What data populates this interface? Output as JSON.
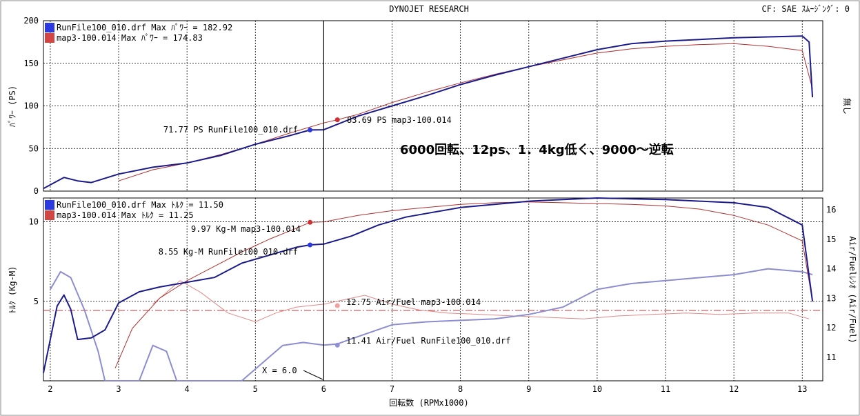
{
  "header": {
    "title": "DYNOJET  RESEARCH",
    "cf": "CF: SAE  ｽﾑｰｼﾞﾝｸﾞ: 0"
  },
  "colors": {
    "run1": "#1a1a8c",
    "run2": "#b03030",
    "run1_af": "#8c8cd0",
    "run2_af": "#e08888",
    "grid": "#000000"
  },
  "chart_data": [
    {
      "type": "line",
      "ylabel": "ﾊﾟﾜｰ (PS)",
      "xlim": [
        1.9,
        13.3
      ],
      "ylim": [
        0,
        200
      ],
      "yticks": [
        "0",
        "50",
        "100",
        "150",
        "200"
      ],
      "right_label": "無し",
      "legend": [
        "RunFile100_010.drf Max ﾊﾟﾜｰ = 182.92",
        "map3-100.014 Max ﾊﾟﾜｰ = 174.83"
      ],
      "annotations": [
        "71.77 PS RunFile100_010.drf",
        "83.69 PS map3-100.014"
      ],
      "note": "6000回転、12ps、1．4kg低く、9000～逆転",
      "series": [
        {
          "name": "RunFile100_010.drf",
          "x": [
            1.9,
            2.2,
            2.4,
            2.6,
            3.0,
            3.5,
            4.0,
            4.5,
            5.0,
            5.5,
            5.8,
            6.0,
            6.5,
            7.0,
            7.5,
            8.0,
            8.5,
            9.0,
            9.5,
            10.0,
            10.5,
            11.0,
            11.5,
            12.0,
            12.5,
            13.0,
            13.1,
            13.15
          ],
          "y": [
            3,
            16,
            12,
            10,
            20,
            28,
            33,
            42,
            55,
            65,
            71.77,
            72,
            88,
            100,
            112,
            125,
            136,
            146,
            156,
            166,
            173,
            176,
            178,
            180,
            181,
            182,
            175,
            110
          ]
        },
        {
          "name": "map3-100.014",
          "x": [
            3.0,
            3.5,
            4.0,
            4.5,
            5.0,
            5.5,
            6.0,
            6.2,
            6.5,
            7.0,
            7.5,
            8.0,
            8.5,
            9.0,
            9.5,
            10.0,
            10.5,
            11.0,
            11.5,
            12.0,
            12.5,
            13.0,
            13.15
          ],
          "y": [
            12,
            25,
            33,
            43,
            55,
            68,
            80,
            83.69,
            90,
            104,
            116,
            127,
            137,
            146,
            154,
            162,
            167,
            170,
            172,
            173,
            170,
            165,
            120
          ]
        }
      ]
    },
    {
      "type": "line",
      "ylabel": "ﾄﾙｸ (Kg-M)",
      "y2label": "Air/Fuelﾚｼｵ (Air/Fuel)",
      "xlabel": "回転数 (RPMx1000)",
      "xlim": [
        1.9,
        13.3
      ],
      "xticks": [
        "2",
        "3",
        "4",
        "5",
        "6",
        "7",
        "8",
        "9",
        "10",
        "11",
        "12",
        "13"
      ],
      "ylim": [
        0,
        11.5
      ],
      "yticks": [
        "5",
        "10"
      ],
      "y2lim": [
        10.2,
        16.4
      ],
      "y2ticks": [
        "11",
        "12",
        "13",
        "14",
        "15",
        "16"
      ],
      "legend": [
        "RunFile100_010.drf Max ﾄﾙｸ = 11.50",
        "map3-100.014 Max ﾄﾙｸ = 11.25"
      ],
      "annotations": [
        "9.97 Kg-M map3-100.014",
        "8.55 Kg-M RunFile100_010.drf",
        "12.75 Air/Fuel map3-100.014",
        "11.41 Air/Fuel RunFile100_010.drf",
        "X = 6.0"
      ],
      "series": [
        {
          "name": "RunFile100_010.drf ﾄﾙｸ",
          "x": [
            1.9,
            2.1,
            2.2,
            2.3,
            2.4,
            2.6,
            2.8,
            3.0,
            3.3,
            3.6,
            4.0,
            4.4,
            4.8,
            5.2,
            5.6,
            5.8,
            6.0,
            6.4,
            6.8,
            7.2,
            7.6,
            8.0,
            8.5,
            9.0,
            9.5,
            10.0,
            10.5,
            11.0,
            11.5,
            12.0,
            12.5,
            13.0,
            13.15
          ],
          "y": [
            0.5,
            4.7,
            5.4,
            4.5,
            2.6,
            2.7,
            3.2,
            4.9,
            5.6,
            5.9,
            6.2,
            6.5,
            7.4,
            7.9,
            8.4,
            8.55,
            8.6,
            9.1,
            9.8,
            10.3,
            10.6,
            10.9,
            11.1,
            11.3,
            11.4,
            11.5,
            11.45,
            11.4,
            11.3,
            11.2,
            10.9,
            9.8,
            5.0
          ]
        },
        {
          "name": "map3-100.014 ﾄﾙｸ",
          "x": [
            2.95,
            3.2,
            3.6,
            4.0,
            4.4,
            4.8,
            5.2,
            5.6,
            5.8,
            6.0,
            6.5,
            7.0,
            7.5,
            8.0,
            8.5,
            9.0,
            9.5,
            10.0,
            10.5,
            11.0,
            11.5,
            12.0,
            12.5,
            13.0,
            13.15
          ],
          "y": [
            0.8,
            3.3,
            5.2,
            6.3,
            7.2,
            8.1,
            8.9,
            9.6,
            9.97,
            10.0,
            10.4,
            10.7,
            10.9,
            11.1,
            11.2,
            11.25,
            11.2,
            11.15,
            11.1,
            11.0,
            10.8,
            10.4,
            9.8,
            8.8,
            5.0
          ]
        },
        {
          "name": "RunFile100_010.drf Air/Fuel",
          "x": [
            2.0,
            2.15,
            2.3,
            2.5,
            2.7,
            2.8,
            3.3,
            3.5,
            3.7,
            3.85,
            4.8,
            5.1,
            5.4,
            5.7,
            6.0,
            6.2,
            6.5,
            7.0,
            7.5,
            8.0,
            8.5,
            9.0,
            9.5,
            10.0,
            10.5,
            11.0,
            11.5,
            12.0,
            12.5,
            13.0,
            13.15
          ],
          "y": [
            13.3,
            13.9,
            13.7,
            12.6,
            11.2,
            10.2,
            10.2,
            11.4,
            11.2,
            10.2,
            10.2,
            10.8,
            11.4,
            11.5,
            11.41,
            11.45,
            11.7,
            12.1,
            12.2,
            12.25,
            12.3,
            12.45,
            12.7,
            13.3,
            13.5,
            13.6,
            13.7,
            13.8,
            14.0,
            13.9,
            13.8
          ]
        },
        {
          "name": "map3-100.014 Air/Fuel",
          "x": [
            3.5,
            3.9,
            4.2,
            4.6,
            5.0,
            5.3,
            5.6,
            5.8,
            6.0,
            6.2,
            6.6,
            7.0,
            7.4,
            7.8,
            8.3,
            8.8,
            9.3,
            9.8,
            10.3,
            10.8,
            11.3,
            11.8,
            12.3,
            12.8,
            13.1
          ],
          "y": [
            12.8,
            13.6,
            13.2,
            12.5,
            12.2,
            12.5,
            12.7,
            12.75,
            12.8,
            12.9,
            13.1,
            12.8,
            12.6,
            12.5,
            12.45,
            12.4,
            12.35,
            12.3,
            12.4,
            12.45,
            12.5,
            12.45,
            12.5,
            12.5,
            12.3
          ]
        }
      ]
    }
  ]
}
